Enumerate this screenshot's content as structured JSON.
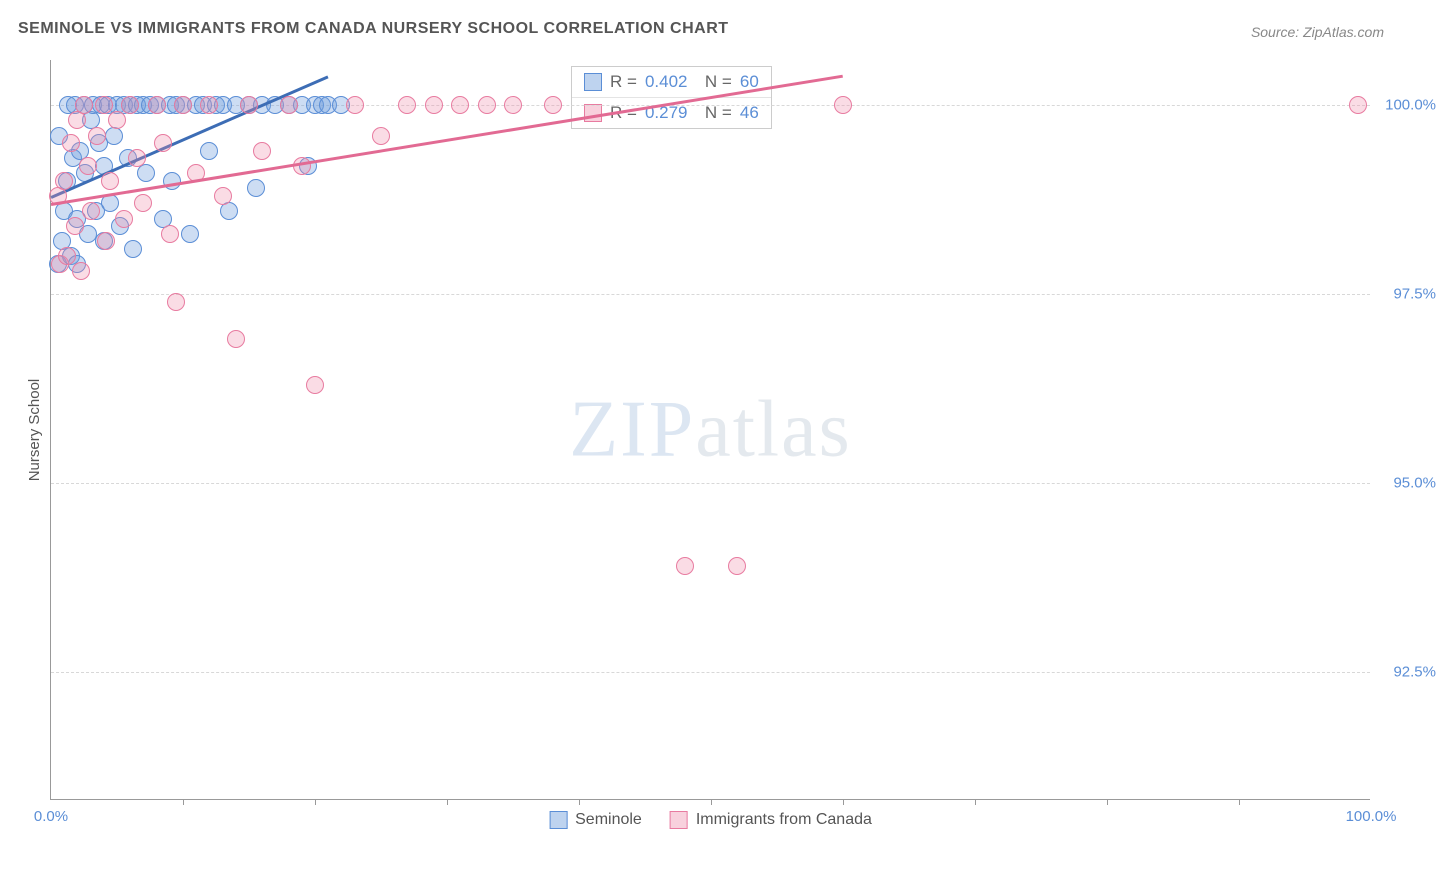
{
  "title": "SEMINOLE VS IMMIGRANTS FROM CANADA NURSERY SCHOOL CORRELATION CHART",
  "source_label": "Source: ZipAtlas.com",
  "y_axis_label": "Nursery School",
  "watermark": {
    "a": "ZIP",
    "b": "atlas"
  },
  "chart": {
    "type": "scatter",
    "background_color": "#ffffff",
    "grid_color": "#d8d8d8",
    "axis_color": "#999999",
    "text_color": "#555555",
    "value_color": "#5b8ed6",
    "xlim": [
      0,
      100
    ],
    "ylim": [
      90.8,
      100.6
    ],
    "x_ticks": [
      0,
      100
    ],
    "x_tick_labels": [
      "0.0%",
      "100.0%"
    ],
    "x_minor_ticks": [
      10,
      20,
      30,
      40,
      50,
      60,
      70,
      80,
      90
    ],
    "y_ticks": [
      92.5,
      95.0,
      97.5,
      100.0
    ],
    "y_tick_labels": [
      "92.5%",
      "95.0%",
      "97.5%",
      "100.0%"
    ],
    "marker_size": 18,
    "series": [
      {
        "id": "seminole",
        "label": "Seminole",
        "fill": "rgba(111,158,220,0.35)",
        "stroke": "#5b8ed6",
        "R": "0.402",
        "N": "60",
        "trend": {
          "x1": 0,
          "y1": 98.8,
          "x2": 21,
          "y2": 100.4,
          "color": "#3d6db5",
          "width": 2.5
        },
        "points": [
          [
            0.5,
            97.9
          ],
          [
            0.8,
            98.2
          ],
          [
            0.6,
            99.6
          ],
          [
            1.0,
            98.6
          ],
          [
            1.2,
            99.0
          ],
          [
            1.3,
            100.0
          ],
          [
            1.5,
            98.0
          ],
          [
            1.7,
            99.3
          ],
          [
            1.8,
            100.0
          ],
          [
            2.0,
            97.9
          ],
          [
            2.0,
            98.5
          ],
          [
            2.2,
            99.4
          ],
          [
            2.5,
            100.0
          ],
          [
            2.6,
            99.1
          ],
          [
            2.8,
            98.3
          ],
          [
            3.0,
            99.8
          ],
          [
            3.2,
            100.0
          ],
          [
            3.4,
            98.6
          ],
          [
            3.6,
            99.5
          ],
          [
            3.8,
            100.0
          ],
          [
            4.0,
            98.2
          ],
          [
            4.0,
            99.2
          ],
          [
            4.3,
            100.0
          ],
          [
            4.5,
            98.7
          ],
          [
            4.8,
            99.6
          ],
          [
            5.0,
            100.0
          ],
          [
            5.2,
            98.4
          ],
          [
            5.5,
            100.0
          ],
          [
            5.8,
            99.3
          ],
          [
            6.0,
            100.0
          ],
          [
            6.2,
            98.1
          ],
          [
            6.5,
            100.0
          ],
          [
            7.0,
            100.0
          ],
          [
            7.2,
            99.1
          ],
          [
            7.5,
            100.0
          ],
          [
            8.0,
            100.0
          ],
          [
            8.5,
            98.5
          ],
          [
            9.0,
            100.0
          ],
          [
            9.2,
            99.0
          ],
          [
            9.5,
            100.0
          ],
          [
            10.0,
            100.0
          ],
          [
            10.5,
            98.3
          ],
          [
            11.0,
            100.0
          ],
          [
            11.5,
            100.0
          ],
          [
            12.0,
            99.4
          ],
          [
            12.5,
            100.0
          ],
          [
            13.0,
            100.0
          ],
          [
            13.5,
            98.6
          ],
          [
            14.0,
            100.0
          ],
          [
            15.0,
            100.0
          ],
          [
            15.5,
            98.9
          ],
          [
            16.0,
            100.0
          ],
          [
            17.0,
            100.0
          ],
          [
            18.0,
            100.0
          ],
          [
            19.0,
            100.0
          ],
          [
            19.5,
            99.2
          ],
          [
            20.0,
            100.0
          ],
          [
            20.5,
            100.0
          ],
          [
            21.0,
            100.0
          ],
          [
            22.0,
            100.0
          ]
        ]
      },
      {
        "id": "canada",
        "label": "Immigrants from Canada",
        "fill": "rgba(238,140,170,0.30)",
        "stroke": "#e87ba0",
        "R": "0.279",
        "N": "46",
        "trend": {
          "x1": 0,
          "y1": 98.7,
          "x2": 60,
          "y2": 100.4,
          "color": "#e26a93",
          "width": 2.5
        },
        "points": [
          [
            0.5,
            98.8
          ],
          [
            0.7,
            97.9
          ],
          [
            1.0,
            99.0
          ],
          [
            1.2,
            98.0
          ],
          [
            1.5,
            99.5
          ],
          [
            1.8,
            98.4
          ],
          [
            2.0,
            99.8
          ],
          [
            2.3,
            97.8
          ],
          [
            2.5,
            100.0
          ],
          [
            2.8,
            99.2
          ],
          [
            3.0,
            98.6
          ],
          [
            3.5,
            99.6
          ],
          [
            4.0,
            100.0
          ],
          [
            4.2,
            98.2
          ],
          [
            4.5,
            99.0
          ],
          [
            5.0,
            99.8
          ],
          [
            5.5,
            98.5
          ],
          [
            6.0,
            100.0
          ],
          [
            6.5,
            99.3
          ],
          [
            7.0,
            98.7
          ],
          [
            8.0,
            100.0
          ],
          [
            8.5,
            99.5
          ],
          [
            9.0,
            98.3
          ],
          [
            9.5,
            97.4
          ],
          [
            10.0,
            100.0
          ],
          [
            11.0,
            99.1
          ],
          [
            12.0,
            100.0
          ],
          [
            13.0,
            98.8
          ],
          [
            14.0,
            96.9
          ],
          [
            15.0,
            100.0
          ],
          [
            16.0,
            99.4
          ],
          [
            18.0,
            100.0
          ],
          [
            19.0,
            99.2
          ],
          [
            20.0,
            96.3
          ],
          [
            23.0,
            100.0
          ],
          [
            25.0,
            99.6
          ],
          [
            27.0,
            100.0
          ],
          [
            29.0,
            100.0
          ],
          [
            31.0,
            100.0
          ],
          [
            33.0,
            100.0
          ],
          [
            35.0,
            100.0
          ],
          [
            38.0,
            100.0
          ],
          [
            48.0,
            93.9
          ],
          [
            52.0,
            93.9
          ],
          [
            60.0,
            100.0
          ],
          [
            99.0,
            100.0
          ]
        ]
      }
    ]
  },
  "legend": {
    "items": [
      {
        "label": "Seminole",
        "class": "sw-a"
      },
      {
        "label": "Immigrants from Canada",
        "class": "sw-b"
      }
    ]
  }
}
